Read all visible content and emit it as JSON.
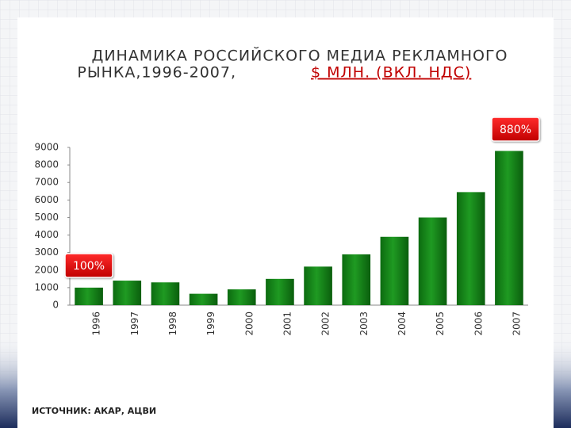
{
  "chart_data": {
    "type": "bar",
    "title": [
      "ДИНАМИКА РОССИЙСКОГО МЕДИА РЕКЛАМНОГО",
      "РЫНКА,1996-2007,",
      "$ МЛН. (ВКЛ. НДС)"
    ],
    "categories": [
      "1996",
      "1997",
      "1998",
      "1999",
      "2000",
      "2001",
      "2002",
      "2003",
      "2004",
      "2005",
      "2006",
      "2007"
    ],
    "values": [
      1000,
      1400,
      1300,
      650,
      900,
      1500,
      2200,
      2900,
      3900,
      5000,
      6450,
      8800
    ],
    "color": "#1f9a22",
    "ylim": [
      0,
      9000
    ],
    "yticks": [
      0,
      1000,
      2000,
      3000,
      4000,
      5000,
      6000,
      7000,
      8000,
      9000
    ],
    "annotations": [
      "100%",
      "880%"
    ],
    "source": "ИСТОЧНИК: АКАР, АЦВИ"
  }
}
